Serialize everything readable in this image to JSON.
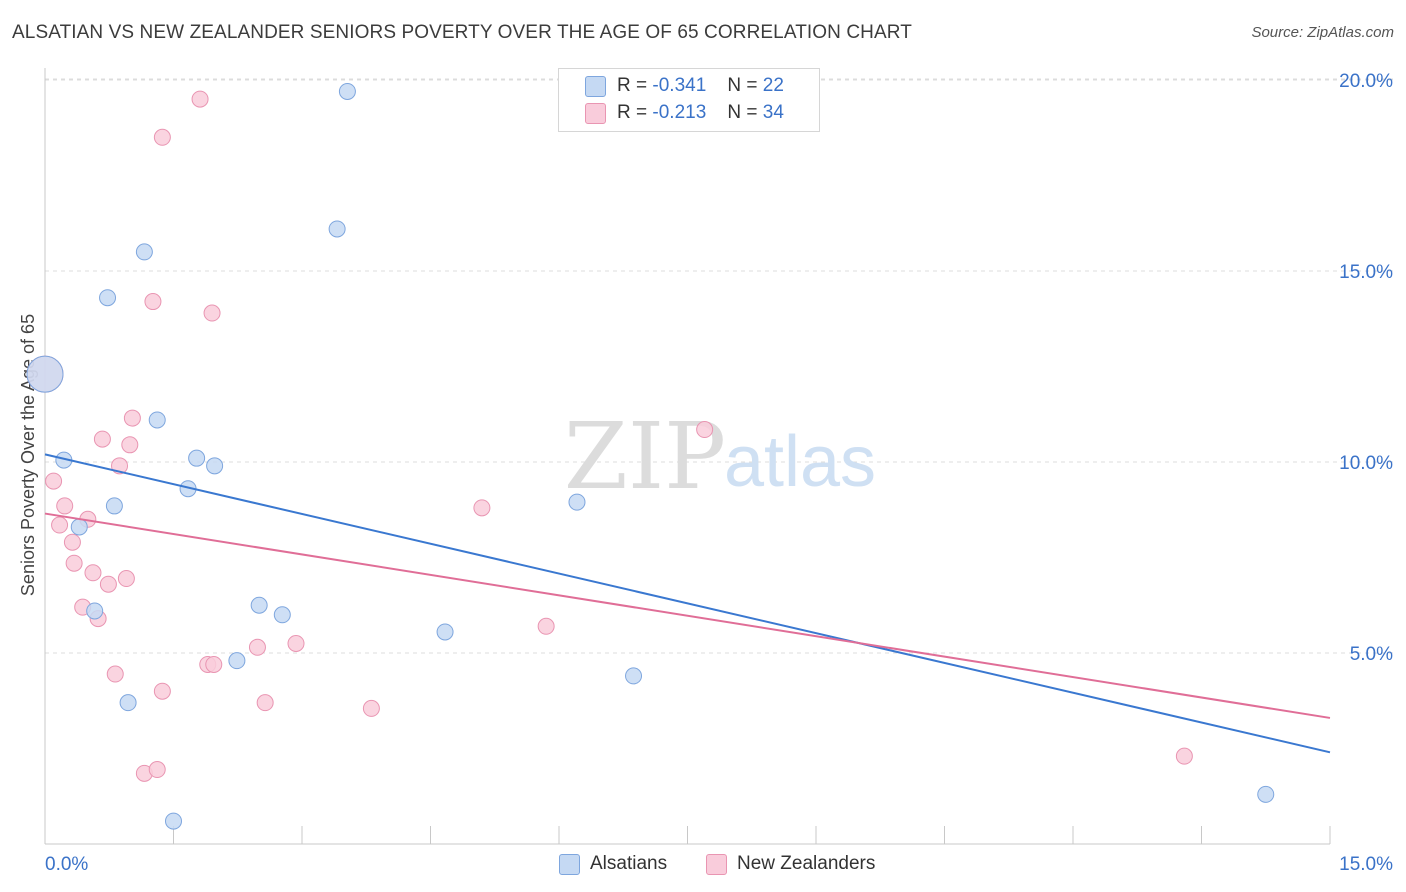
{
  "title": "ALSATIAN VS NEW ZEALANDER SENIORS POVERTY OVER THE AGE OF 65 CORRELATION CHART",
  "source": "Source: ZipAtlas.com",
  "watermark": {
    "part1": "ZIP",
    "part2": "atlas"
  },
  "stats_legend": [
    {
      "r_label": "R =",
      "r_value": "-0.341",
      "n_label": "N =",
      "n_value": "22"
    },
    {
      "r_label": "R =",
      "r_value": "-0.213",
      "n_label": "N =",
      "n_value": "34"
    }
  ],
  "series_legend": [
    {
      "label": "Alsatians"
    },
    {
      "label": "New Zealanders"
    }
  ],
  "colors": {
    "alsatians_fill": "#c5d9f3",
    "alsatians_stroke": "#7ea6de",
    "alsatians_line": "#3a78d0",
    "nz_fill": "#f9ccdb",
    "nz_stroke": "#e995b2",
    "nz_line": "#e06e97",
    "tick_label": "#3a72c8",
    "grid": "#dcdcdc"
  },
  "chart_data": {
    "type": "scatter",
    "title": "ALSATIAN VS NEW ZEALANDER SENIORS POVERTY OVER THE AGE OF 65 CORRELATION CHART",
    "xlabel": "",
    "ylabel": "Seniors Poverty Over the Age of 65",
    "xlim": [
      0,
      15
    ],
    "ylim": [
      0,
      20.5
    ],
    "x_tick_labels": [
      "0.0%",
      "15.0%"
    ],
    "y_ticks": [
      5,
      10,
      15,
      20
    ],
    "y_tick_labels": [
      "5.0%",
      "10.0%",
      "15.0%",
      "20.0%"
    ],
    "grid": "horizontal dashed",
    "legend_position": "top-center",
    "series": [
      {
        "name": "Alsatians",
        "points": [
          [
            0.0,
            12.3
          ],
          [
            0.22,
            10.05
          ],
          [
            0.4,
            8.3
          ],
          [
            0.58,
            6.1
          ],
          [
            0.73,
            14.3
          ],
          [
            0.81,
            8.85
          ],
          [
            0.97,
            3.7
          ],
          [
            1.16,
            15.5
          ],
          [
            1.31,
            11.1
          ],
          [
            1.5,
            0.6
          ],
          [
            1.67,
            9.3
          ],
          [
            1.77,
            10.1
          ],
          [
            1.98,
            9.9
          ],
          [
            2.24,
            4.8
          ],
          [
            2.5,
            6.25
          ],
          [
            2.77,
            6.0
          ],
          [
            3.41,
            16.1
          ],
          [
            3.53,
            19.7
          ],
          [
            4.67,
            5.55
          ],
          [
            6.21,
            8.95
          ],
          [
            6.87,
            4.4
          ],
          [
            14.25,
            1.3
          ]
        ],
        "trend": [
          [
            0.0,
            10.2
          ],
          [
            15.0,
            2.4
          ]
        ]
      },
      {
        "name": "New Zealanders",
        "points": [
          [
            0.0,
            12.3
          ],
          [
            0.1,
            9.5
          ],
          [
            0.17,
            8.35
          ],
          [
            0.23,
            8.85
          ],
          [
            0.32,
            7.9
          ],
          [
            0.34,
            7.35
          ],
          [
            0.44,
            6.2
          ],
          [
            0.5,
            8.5
          ],
          [
            0.56,
            7.1
          ],
          [
            0.62,
            5.9
          ],
          [
            0.67,
            10.6
          ],
          [
            0.74,
            6.8
          ],
          [
            0.82,
            4.45
          ],
          [
            0.87,
            9.9
          ],
          [
            0.95,
            6.95
          ],
          [
            0.99,
            10.45
          ],
          [
            1.02,
            11.15
          ],
          [
            1.16,
            1.85
          ],
          [
            1.26,
            14.2
          ],
          [
            1.31,
            1.95
          ],
          [
            1.37,
            4.0
          ],
          [
            1.37,
            18.5
          ],
          [
            1.81,
            19.5
          ],
          [
            1.9,
            4.7
          ],
          [
            1.95,
            13.9
          ],
          [
            1.97,
            4.7
          ],
          [
            2.48,
            5.15
          ],
          [
            2.57,
            3.7
          ],
          [
            2.93,
            5.25
          ],
          [
            3.81,
            3.55
          ],
          [
            5.1,
            8.8
          ],
          [
            5.85,
            5.7
          ],
          [
            7.7,
            10.85
          ],
          [
            13.3,
            2.3
          ]
        ],
        "trend": [
          [
            0.0,
            8.65
          ],
          [
            15.0,
            3.3
          ]
        ]
      }
    ]
  }
}
